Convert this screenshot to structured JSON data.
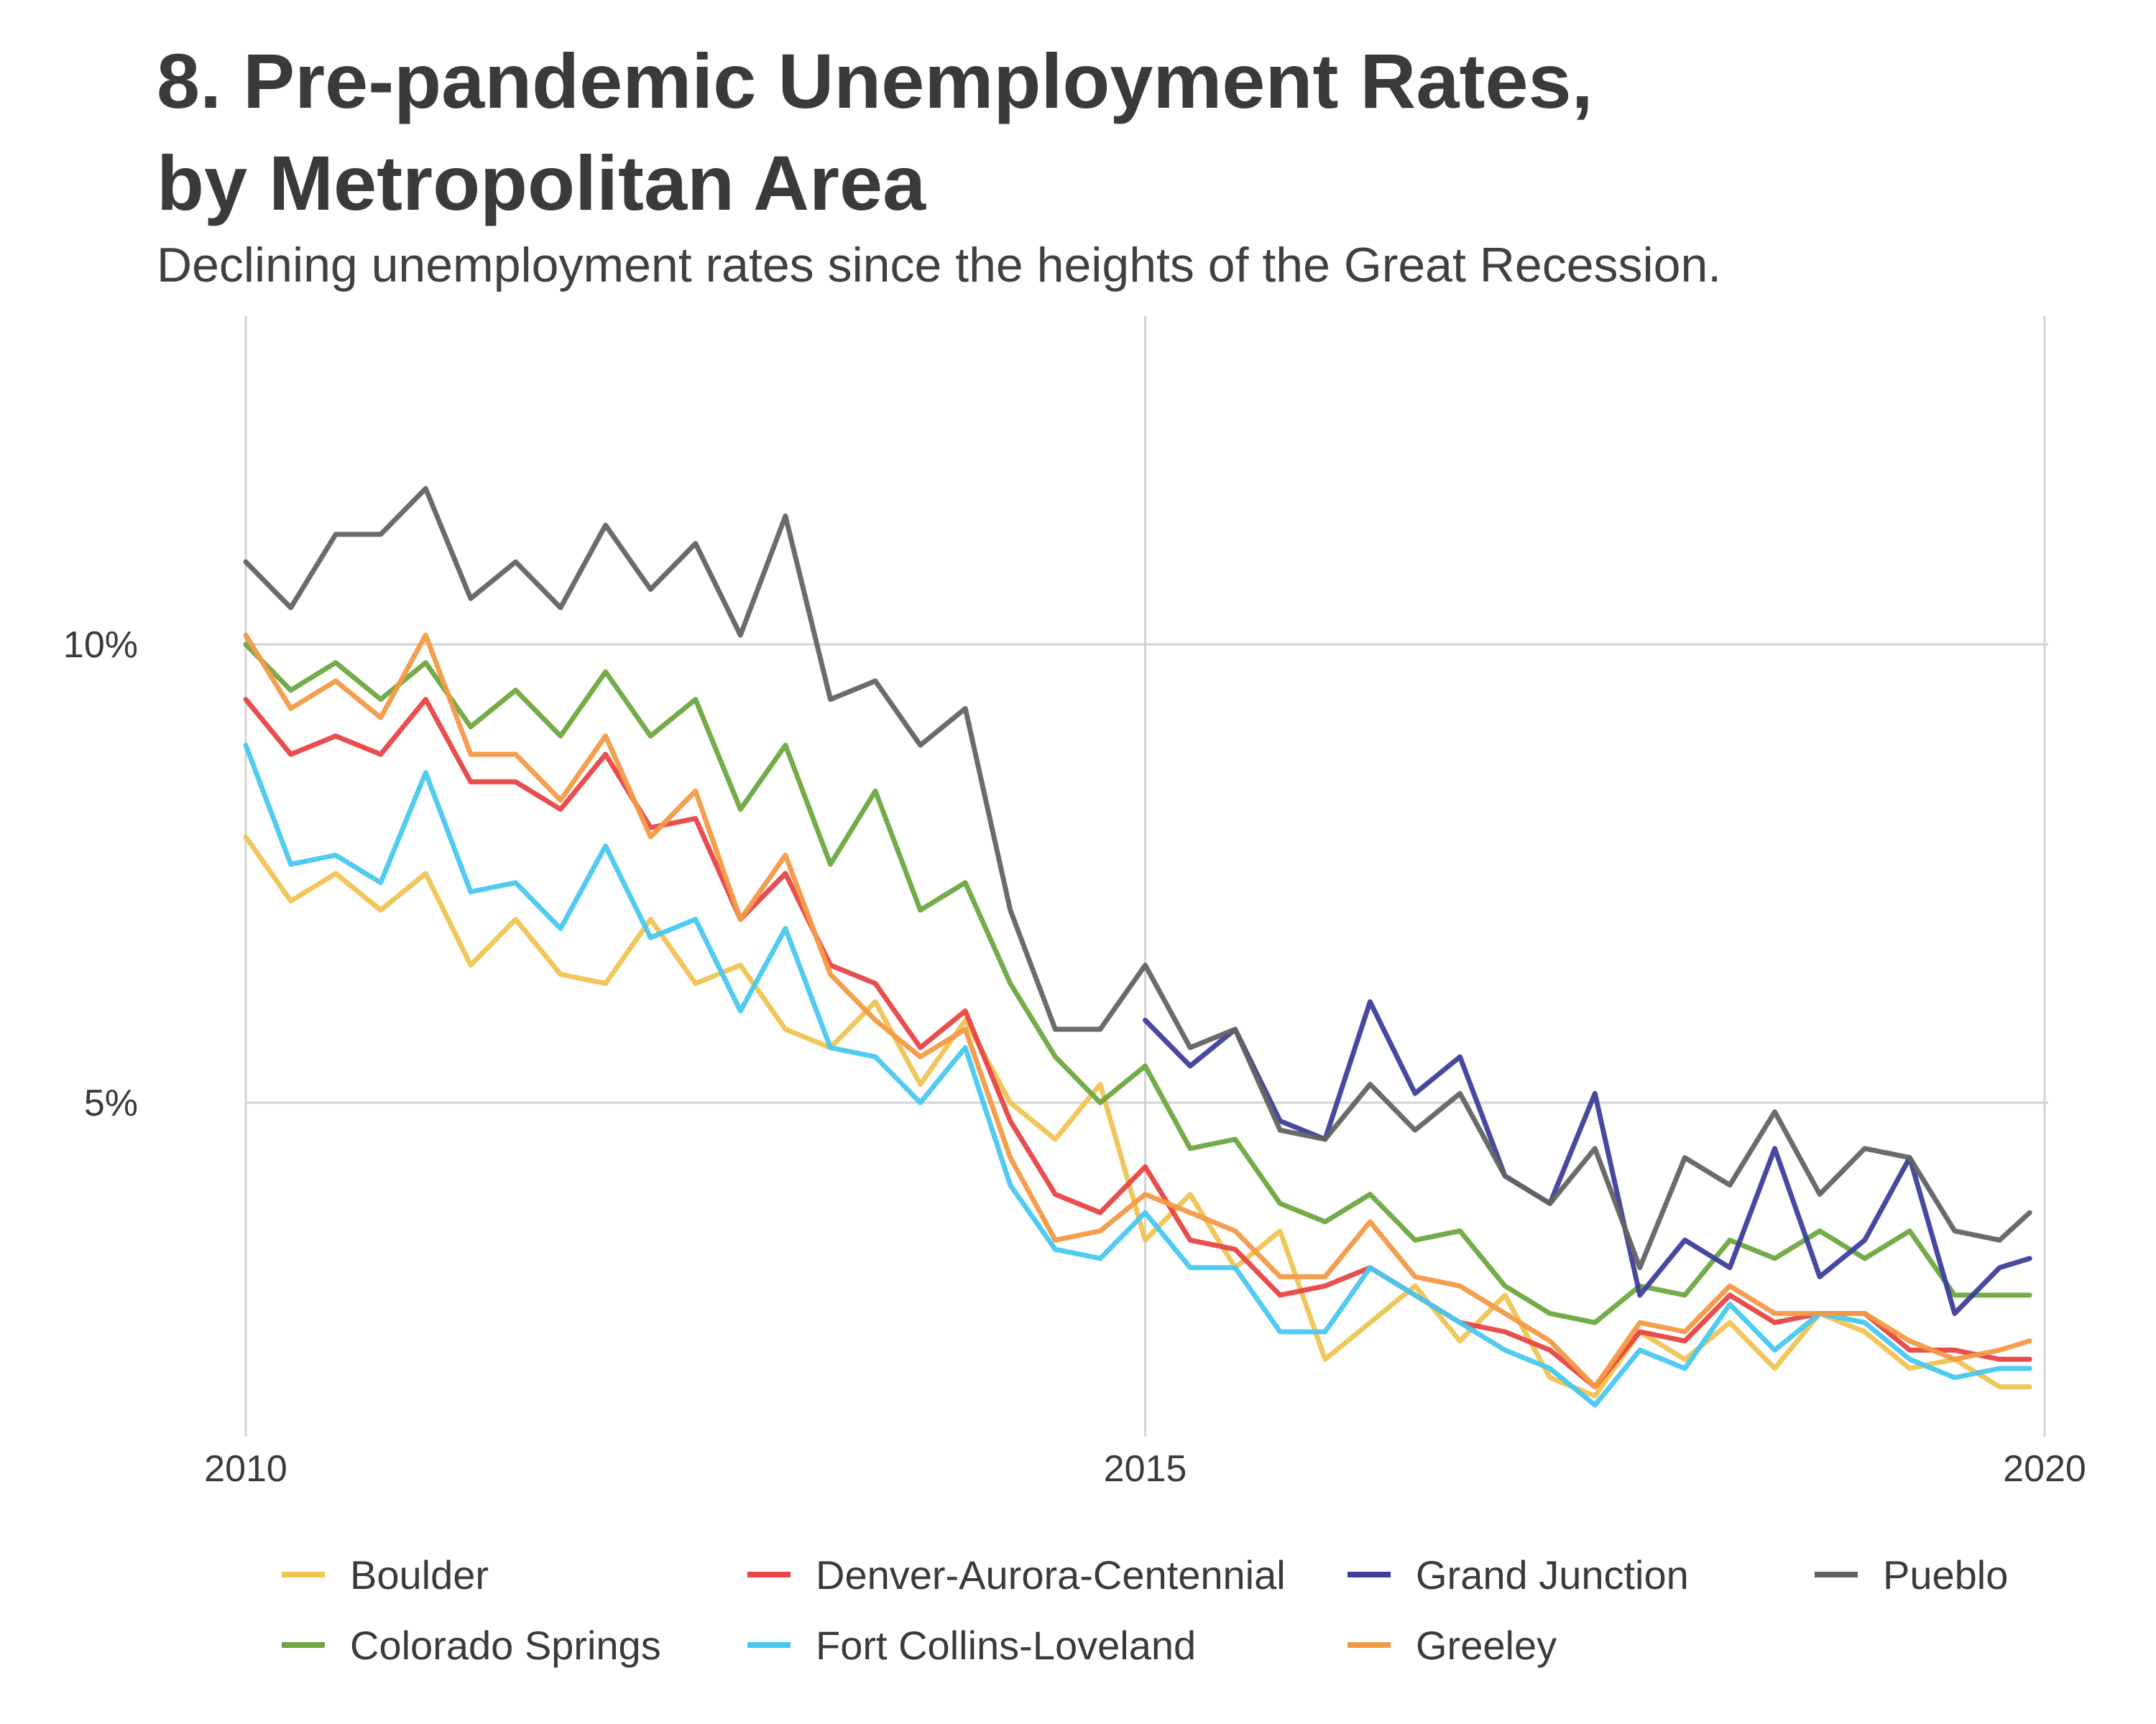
{
  "title_lines": [
    "8. Pre-pandemic Unemployment Rates,",
    "by Metropolitan Area"
  ],
  "subtitle": "Declining unemployment rates since the heights of the Great Recession.",
  "chart_data": {
    "type": "line",
    "title": "8. Pre-pandemic Unemployment Rates, by Metropolitan Area",
    "subtitle": "Declining unemployment rates since the heights of the Great Recession.",
    "xlabel": "",
    "ylabel": "",
    "xlim": [
      2010,
      2020
    ],
    "ylim": [
      1.5,
      12.0
    ],
    "x_ticks": [
      {
        "value": 2010,
        "label": "2010"
      },
      {
        "value": 2015,
        "label": "2015"
      },
      {
        "value": 2020,
        "label": "2020"
      }
    ],
    "y_ticks": [
      {
        "value": 5,
        "label": "5%"
      },
      {
        "value": 10,
        "label": "10%"
      }
    ],
    "grid": true,
    "legend": "bottom",
    "series": [
      {
        "name": "Boulder",
        "color": "#f0c453",
        "x": [
          2010.0,
          2010.25,
          2010.5,
          2010.75,
          2011.0,
          2011.25,
          2011.5,
          2011.75,
          2012.0,
          2012.25,
          2012.5,
          2012.75,
          2013.0,
          2013.25,
          2013.5,
          2013.75,
          2014.0,
          2014.25,
          2014.5,
          2014.75,
          2015.0,
          2015.25,
          2015.5,
          2015.75,
          2016.0,
          2016.25,
          2016.5,
          2016.75,
          2017.0,
          2017.25,
          2017.5,
          2017.75,
          2018.0,
          2018.25,
          2018.5,
          2018.75,
          2019.0,
          2019.25,
          2019.5,
          2019.75,
          2019.917
        ],
        "y": [
          7.9,
          7.2,
          7.5,
          7.1,
          7.5,
          6.5,
          7.0,
          6.4,
          6.3,
          7.0,
          6.3,
          6.5,
          5.8,
          5.6,
          6.1,
          5.2,
          5.9,
          5.0,
          4.6,
          5.2,
          3.5,
          4.0,
          3.2,
          3.6,
          2.2,
          2.6,
          3.0,
          2.4,
          2.9,
          2.0,
          1.8,
          2.5,
          2.2,
          2.6,
          2.1,
          2.7,
          2.5,
          2.1,
          2.2,
          1.9,
          1.9
        ]
      },
      {
        "name": "Colorado Springs",
        "color": "#6ea840",
        "x": [
          2010.0,
          2010.25,
          2010.5,
          2010.75,
          2011.0,
          2011.25,
          2011.5,
          2011.75,
          2012.0,
          2012.25,
          2012.5,
          2012.75,
          2013.0,
          2013.25,
          2013.5,
          2013.75,
          2014.0,
          2014.25,
          2014.5,
          2014.75,
          2015.0,
          2015.25,
          2015.5,
          2015.75,
          2016.0,
          2016.25,
          2016.5,
          2016.75,
          2017.0,
          2017.25,
          2017.5,
          2017.75,
          2018.0,
          2018.25,
          2018.5,
          2018.75,
          2019.0,
          2019.25,
          2019.5,
          2019.75,
          2019.917
        ],
        "y": [
          10.0,
          9.5,
          9.8,
          9.4,
          9.8,
          9.1,
          9.5,
          9.0,
          9.7,
          9.0,
          9.4,
          8.2,
          8.9,
          7.6,
          8.4,
          7.1,
          7.4,
          6.3,
          5.5,
          5.0,
          5.4,
          4.5,
          4.6,
          3.9,
          3.7,
          4.0,
          3.5,
          3.6,
          3.0,
          2.7,
          2.6,
          3.0,
          2.9,
          3.5,
          3.3,
          3.6,
          3.3,
          3.6,
          2.9,
          2.9,
          2.9
        ]
      },
      {
        "name": "Denver-Aurora-Centennial",
        "color": "#e84545",
        "x": [
          2010.0,
          2010.25,
          2010.5,
          2010.75,
          2011.0,
          2011.25,
          2011.5,
          2011.75,
          2012.0,
          2012.25,
          2012.5,
          2012.75,
          2013.0,
          2013.25,
          2013.5,
          2013.75,
          2014.0,
          2014.25,
          2014.5,
          2014.75,
          2015.0,
          2015.25,
          2015.5,
          2015.75,
          2016.0,
          2016.25,
          2016.5,
          2016.75,
          2017.0,
          2017.25,
          2017.5,
          2017.75,
          2018.0,
          2018.25,
          2018.5,
          2018.75,
          2019.0,
          2019.25,
          2019.5,
          2019.75,
          2019.917
        ],
        "y": [
          9.4,
          8.8,
          9.0,
          8.8,
          9.4,
          8.5,
          8.5,
          8.2,
          8.8,
          8.0,
          8.1,
          7.0,
          7.5,
          6.5,
          6.3,
          5.6,
          6.0,
          4.8,
          4.0,
          3.8,
          4.3,
          3.5,
          3.4,
          2.9,
          3.0,
          3.2,
          2.9,
          2.6,
          2.5,
          2.3,
          1.9,
          2.5,
          2.4,
          2.9,
          2.6,
          2.7,
          2.7,
          2.3,
          2.3,
          2.2,
          2.2
        ]
      },
      {
        "name": "Fort Collins-Loveland",
        "color": "#48c8ef",
        "x": [
          2010.0,
          2010.25,
          2010.5,
          2010.75,
          2011.0,
          2011.25,
          2011.5,
          2011.75,
          2012.0,
          2012.25,
          2012.5,
          2012.75,
          2013.0,
          2013.25,
          2013.5,
          2013.75,
          2014.0,
          2014.25,
          2014.5,
          2014.75,
          2015.0,
          2015.25,
          2015.5,
          2015.75,
          2016.0,
          2016.25,
          2016.5,
          2016.75,
          2017.0,
          2017.25,
          2017.5,
          2017.75,
          2018.0,
          2018.25,
          2018.5,
          2018.75,
          2019.0,
          2019.25,
          2019.5,
          2019.75,
          2019.917
        ],
        "y": [
          8.9,
          7.6,
          7.7,
          7.4,
          8.6,
          7.3,
          7.4,
          6.9,
          7.8,
          6.8,
          7.0,
          6.0,
          6.9,
          5.6,
          5.5,
          5.0,
          5.6,
          4.1,
          3.4,
          3.3,
          3.8,
          3.2,
          3.2,
          2.5,
          2.5,
          3.2,
          2.9,
          2.6,
          2.3,
          2.1,
          1.7,
          2.3,
          2.1,
          2.8,
          2.3,
          2.7,
          2.6,
          2.2,
          2.0,
          2.1,
          2.1
        ]
      },
      {
        "name": "Grand Junction",
        "color": "#3c3f9a",
        "x": [
          2015.0,
          2015.25,
          2015.5,
          2015.75,
          2016.0,
          2016.25,
          2016.5,
          2016.75,
          2017.0,
          2017.25,
          2017.5,
          2017.75,
          2018.0,
          2018.25,
          2018.5,
          2018.75,
          2019.0,
          2019.25,
          2019.5,
          2019.75,
          2019.917
        ],
        "y": [
          5.9,
          5.4,
          5.8,
          4.8,
          4.6,
          6.1,
          5.1,
          5.5,
          4.2,
          3.9,
          5.1,
          2.9,
          3.5,
          3.2,
          4.5,
          3.1,
          3.5,
          4.4,
          2.7,
          3.2,
          3.3
        ]
      },
      {
        "name": "Greeley",
        "color": "#f39a46",
        "x": [
          2010.0,
          2010.25,
          2010.5,
          2010.75,
          2011.0,
          2011.25,
          2011.5,
          2011.75,
          2012.0,
          2012.25,
          2012.5,
          2012.75,
          2013.0,
          2013.25,
          2013.5,
          2013.75,
          2014.0,
          2014.25,
          2014.5,
          2014.75,
          2015.0,
          2015.25,
          2015.5,
          2015.75,
          2016.0,
          2016.25,
          2016.5,
          2016.75,
          2017.0,
          2017.25,
          2017.5,
          2017.75,
          2018.0,
          2018.25,
          2018.5,
          2018.75,
          2019.0,
          2019.25,
          2019.5,
          2019.75,
          2019.917
        ],
        "y": [
          10.1,
          9.3,
          9.6,
          9.2,
          10.1,
          8.8,
          8.8,
          8.3,
          9.0,
          7.9,
          8.4,
          7.0,
          7.7,
          6.4,
          5.9,
          5.5,
          5.8,
          4.4,
          3.5,
          3.6,
          4.0,
          3.8,
          3.6,
          3.1,
          3.1,
          3.7,
          3.1,
          3.0,
          2.7,
          2.4,
          1.9,
          2.6,
          2.5,
          3.0,
          2.7,
          2.7,
          2.7,
          2.4,
          2.2,
          2.3,
          2.4
        ]
      },
      {
        "name": "Pueblo",
        "color": "#636363",
        "x": [
          2010.0,
          2010.25,
          2010.5,
          2010.75,
          2011.0,
          2011.25,
          2011.5,
          2011.75,
          2012.0,
          2012.25,
          2012.5,
          2012.75,
          2013.0,
          2013.25,
          2013.5,
          2013.75,
          2014.0,
          2014.25,
          2014.5,
          2014.75,
          2015.0,
          2015.25,
          2015.5,
          2015.75,
          2016.0,
          2016.25,
          2016.5,
          2016.75,
          2017.0,
          2017.25,
          2017.5,
          2017.75,
          2018.0,
          2018.25,
          2018.5,
          2018.75,
          2019.0,
          2019.25,
          2019.5,
          2019.75,
          2019.917
        ],
        "y": [
          10.9,
          10.4,
          11.2,
          11.2,
          11.7,
          10.5,
          10.9,
          10.4,
          11.3,
          10.6,
          11.1,
          10.1,
          11.4,
          9.4,
          9.6,
          8.9,
          9.3,
          7.1,
          5.8,
          5.8,
          6.5,
          5.6,
          5.8,
          4.7,
          4.6,
          5.2,
          4.7,
          5.1,
          4.2,
          3.9,
          4.5,
          3.2,
          4.4,
          4.1,
          4.9,
          4.0,
          4.5,
          4.4,
          3.6,
          3.5,
          3.8
        ]
      }
    ]
  }
}
